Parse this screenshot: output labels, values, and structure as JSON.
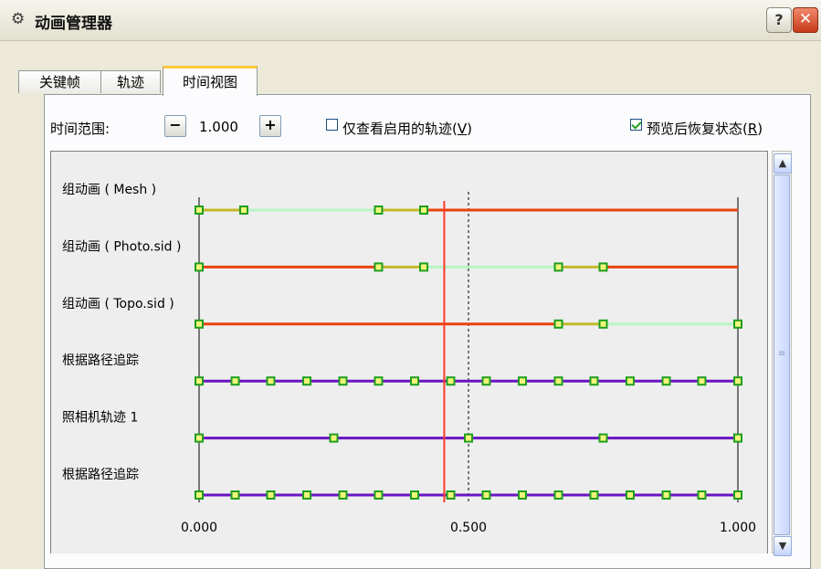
{
  "window": {
    "title": "动画管理器",
    "title_icon": "animation-icon",
    "help_label": "?",
    "close_label": "✕"
  },
  "tabs": [
    {
      "label": "关键帧"
    },
    {
      "label": "轨迹"
    },
    {
      "label": "时间视图",
      "active": true
    }
  ],
  "time_range": {
    "label": "时间范围:",
    "minus_label": "−",
    "value": "1.000",
    "plus_label": "+"
  },
  "only_enabled": {
    "label": "仅查看启用的轨迹(",
    "mnemonic": "V",
    "label_end": ")",
    "checked": false
  },
  "restore_after_preview": {
    "label": "预览后恢复状态(",
    "mnemonic": "R",
    "label_end": ")",
    "checked": true
  },
  "colors": {
    "orange": "#e8420f",
    "light_green": "#b6f5c4",
    "olive": "#c2b92a",
    "purple": "#6a14c2",
    "key_border": "#1f9e1f",
    "key_fill": "#f1f67a",
    "current_time": "#ff3a2a"
  },
  "chart_data": {
    "type": "timeline",
    "x_range": [
      0,
      1
    ],
    "ticks": [
      "0.000",
      "0.500",
      "1.000"
    ],
    "current_time": 0.455,
    "dashed_marker": 0.5,
    "tracks": [
      {
        "name": "组动画 ( Mesh )",
        "segments": [
          {
            "from": 0.0,
            "to": 0.083,
            "color": "olive"
          },
          {
            "from": 0.083,
            "to": 0.333,
            "color": "light_green"
          },
          {
            "from": 0.333,
            "to": 0.417,
            "color": "olive"
          },
          {
            "from": 0.417,
            "to": 1.0,
            "color": "orange"
          }
        ],
        "keys": [
          0.0,
          0.083,
          0.333,
          0.417
        ]
      },
      {
        "name": "组动画 ( Photo.sid )",
        "segments": [
          {
            "from": 0.0,
            "to": 0.333,
            "color": "orange"
          },
          {
            "from": 0.333,
            "to": 0.417,
            "color": "olive"
          },
          {
            "from": 0.417,
            "to": 0.667,
            "color": "light_green"
          },
          {
            "from": 0.667,
            "to": 0.75,
            "color": "olive"
          },
          {
            "from": 0.75,
            "to": 1.0,
            "color": "orange"
          }
        ],
        "keys": [
          0.0,
          0.333,
          0.417,
          0.667,
          0.75
        ]
      },
      {
        "name": "组动画 ( Topo.sid )",
        "segments": [
          {
            "from": 0.0,
            "to": 0.667,
            "color": "orange"
          },
          {
            "from": 0.667,
            "to": 0.75,
            "color": "olive"
          },
          {
            "from": 0.75,
            "to": 1.0,
            "color": "light_green"
          }
        ],
        "keys": [
          0.0,
          0.667,
          0.75,
          1.0
        ]
      },
      {
        "name": "根据路径追踪",
        "segments": [
          {
            "from": 0.0,
            "to": 1.0,
            "color": "purple"
          }
        ],
        "keys": [
          0.0,
          0.067,
          0.133,
          0.2,
          0.267,
          0.333,
          0.4,
          0.467,
          0.533,
          0.6,
          0.667,
          0.733,
          0.8,
          0.867,
          0.933,
          1.0
        ]
      },
      {
        "name": "照相机轨迹 1",
        "segments": [
          {
            "from": 0.0,
            "to": 1.0,
            "color": "purple"
          }
        ],
        "keys": [
          0.0,
          0.25,
          0.5,
          0.75,
          1.0
        ]
      },
      {
        "name": "根据路径追踪",
        "segments": [
          {
            "from": 0.0,
            "to": 1.0,
            "color": "purple"
          }
        ],
        "keys": [
          0.0,
          0.067,
          0.133,
          0.2,
          0.267,
          0.333,
          0.4,
          0.467,
          0.533,
          0.6,
          0.667,
          0.733,
          0.8,
          0.867,
          0.933,
          1.0
        ]
      }
    ]
  }
}
